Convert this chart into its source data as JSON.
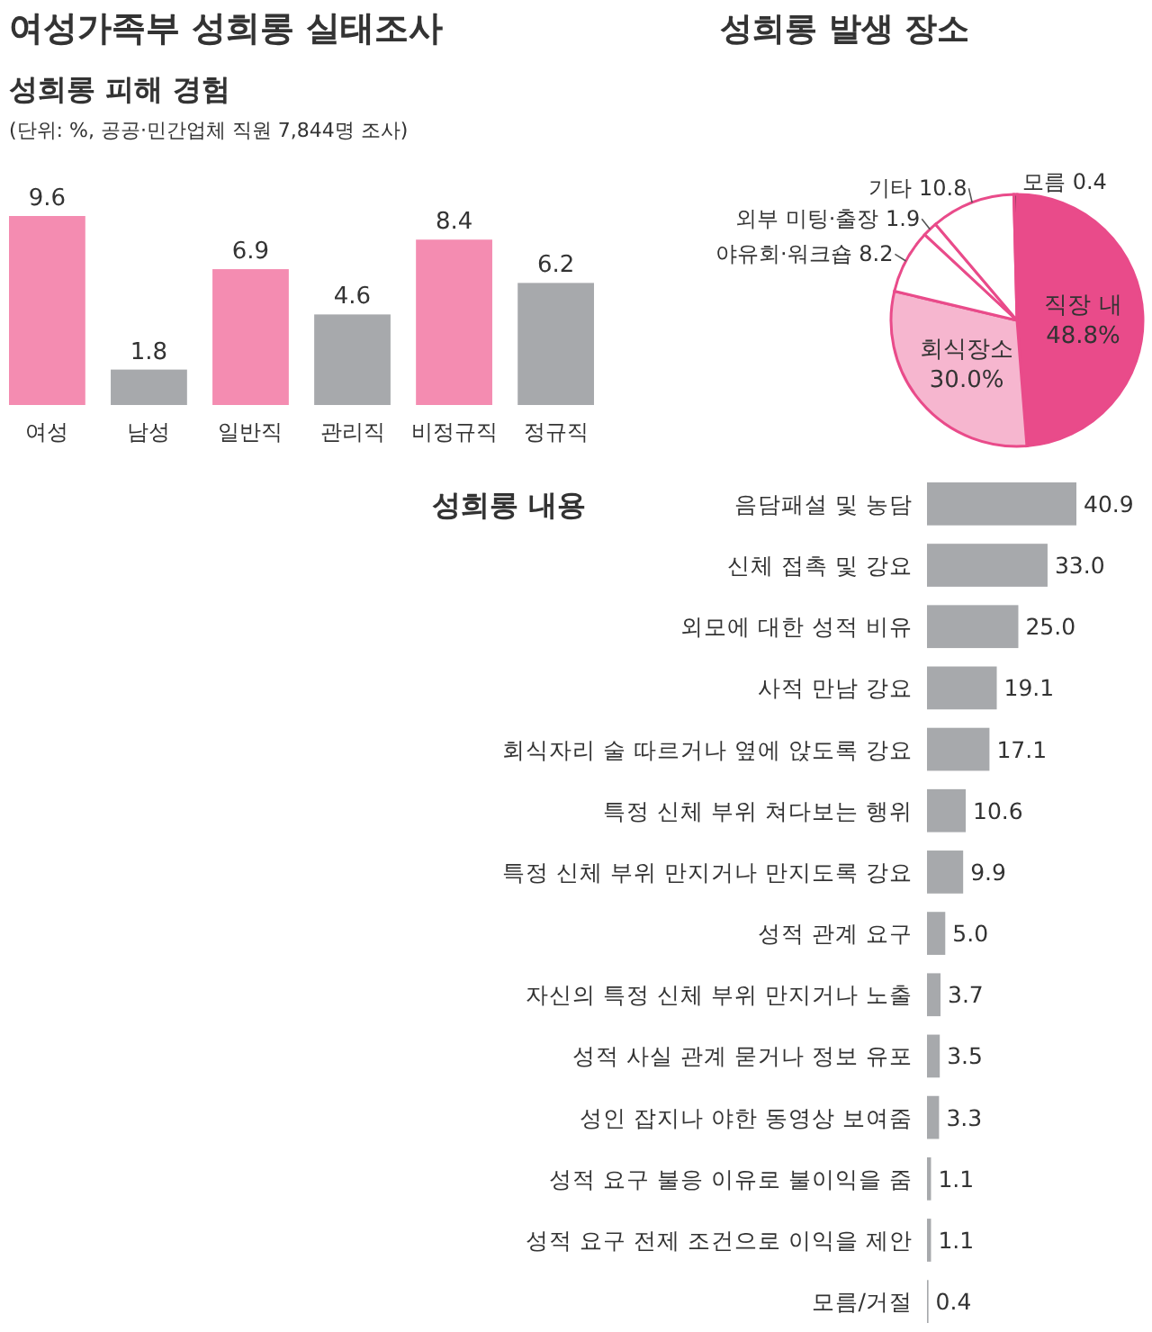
{
  "chart_data": [
    {
      "type": "bar",
      "title": "여성가족부 성희롱 실태조사",
      "subtitle": "성희롱 피해 경험",
      "annotations": [
        "(단위: %, 공공·민간업체 직원 7,844명 조사)"
      ],
      "categories": [
        "여성",
        "남성",
        "일반직",
        "관리직",
        "비정규직",
        "정규직"
      ],
      "values": [
        9.6,
        1.8,
        6.9,
        4.6,
        8.4,
        6.2
      ],
      "colors": [
        "#f48cb1",
        "#a7a9ac",
        "#f48cb1",
        "#a7a9ac",
        "#f48cb1",
        "#a7a9ac"
      ],
      "data_labels": true
    },
    {
      "type": "pie",
      "title": "성희롱 발생 장소",
      "categories": [
        "직장 내",
        "회식장소",
        "야유회·워크숍",
        "외부 미팅·출장",
        "기타",
        "모름"
      ],
      "values": [
        48.8,
        30.0,
        8.2,
        1.9,
        10.8,
        0.4
      ],
      "colors": [
        "#e94b8a",
        "#f6b6cf",
        "#ffffff",
        "#ffffff",
        "#ffffff",
        "#333333"
      ],
      "value_labels": [
        "48.8%",
        "30.0%",
        "8.2",
        "1.9",
        "10.8",
        "0.4"
      ]
    },
    {
      "type": "bar",
      "orientation": "horizontal",
      "title": "성희롱 내용",
      "categories": [
        "음담패설 및 농담",
        "신체 접촉 및 강요",
        "외모에 대한 성적 비유",
        "사적 만남 강요",
        "회식자리 술 따르거나 옆에 앉도록 강요",
        "특정 신체 부위 쳐다보는 행위",
        "특정 신체 부위 만지거나 만지도록 강요",
        "성적 관계 요구",
        "자신의 특정 신체 부위 만지거나 노출",
        "성적 사실 관계 묻거나 정보 유포",
        "성인 잡지나 야한 동영상 보여줌",
        "성적 요구 불응 이유로 불이익을 줌",
        "성적 요구 전제 조건으로 이익을 제안",
        "모름/거절"
      ],
      "series": [
        {
          "color": "#a7a9ac",
          "values": [
            40.9,
            33.0,
            25.0,
            19.1,
            17.1,
            10.6,
            9.9,
            5.0,
            3.7,
            3.5,
            3.3,
            1.1,
            1.1,
            0.4
          ],
          "value_labels": [
            "40.9",
            "33.0",
            "25.0",
            "19.1",
            "17.1",
            "10.6",
            "9.9",
            "5.0",
            "3.7",
            "3.5",
            "3.3",
            "1.1",
            "1.1",
            "0.4"
          ]
        }
      ]
    }
  ]
}
